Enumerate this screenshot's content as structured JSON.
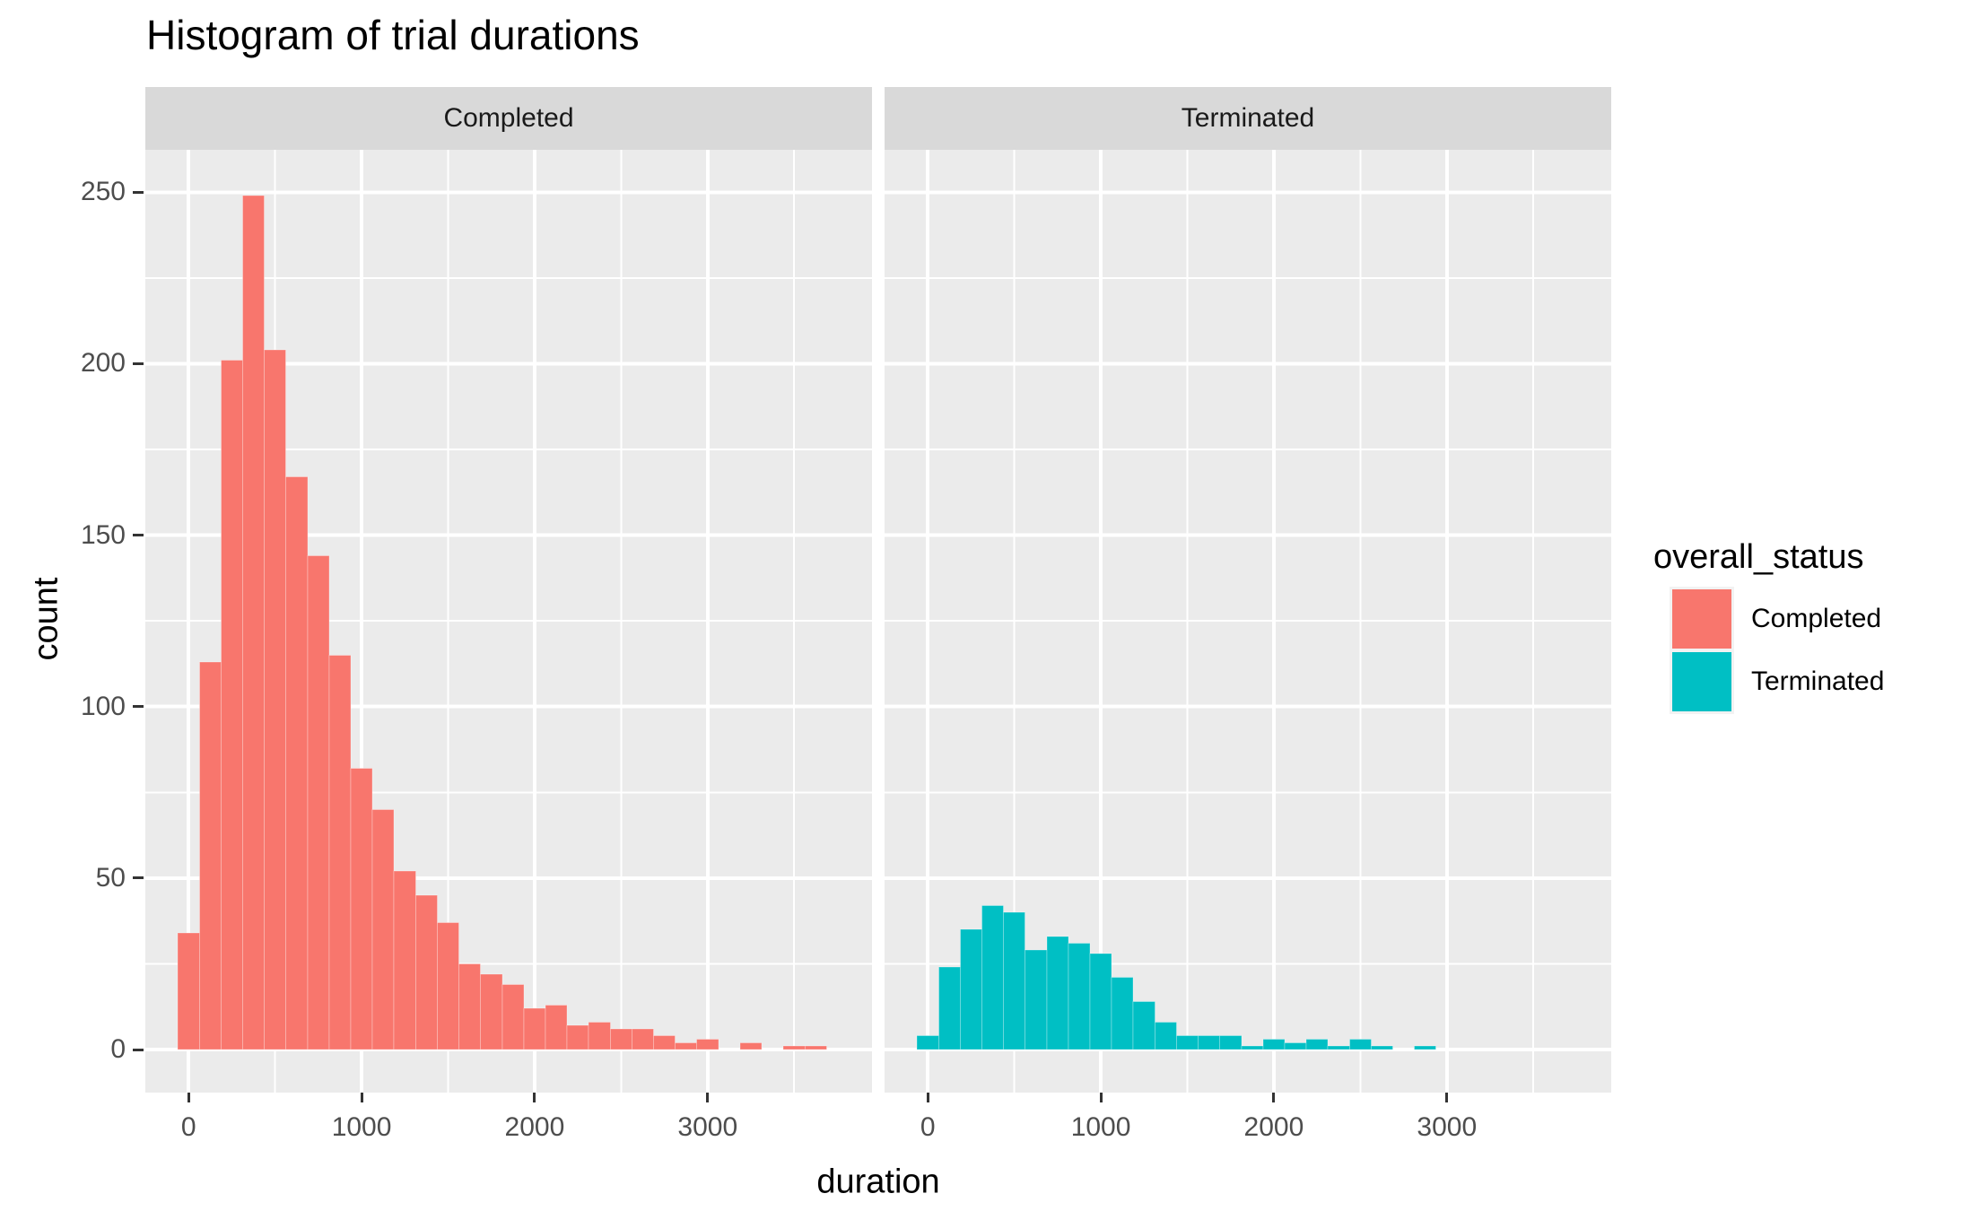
{
  "chart_data": {
    "type": "bar",
    "subtype": "faceted-histogram",
    "title": "Histogram of trial durations",
    "xlabel": "duration",
    "ylabel": "count",
    "grid": true,
    "legend_position": "right",
    "x_tick_values": [
      0,
      1000,
      2000,
      3000
    ],
    "x_tick_labels": [
      "0",
      "1000",
      "2000",
      "3000"
    ],
    "y_tick_values": [
      0,
      50,
      100,
      150,
      200,
      250
    ],
    "y_tick_labels": [
      "0",
      "50",
      "100",
      "150",
      "200",
      "250"
    ],
    "x_minor_values": [
      500,
      1500,
      2500,
      3500
    ],
    "y_minor_values": [
      25,
      75,
      125,
      175,
      225
    ],
    "x_domain": [
      -250,
      3950
    ],
    "y_domain": [
      -12.6,
      262.4
    ],
    "bins": {
      "start": -62.5,
      "width": 125,
      "n": 30
    },
    "facets": [
      {
        "label": "Completed",
        "color": "#F8766D",
        "counts": [
          34,
          113,
          201,
          249,
          204,
          167,
          144,
          115,
          82,
          70,
          52,
          45,
          37,
          25,
          22,
          19,
          12,
          13,
          7,
          8,
          6,
          6,
          4,
          2,
          3,
          0,
          2,
          0,
          1,
          1
        ]
      },
      {
        "label": "Terminated",
        "color": "#00BFC4",
        "counts": [
          4,
          24,
          35,
          42,
          40,
          29,
          33,
          31,
          28,
          21,
          14,
          8,
          4,
          4,
          4,
          1,
          3,
          2,
          3,
          1,
          3,
          1,
          0,
          1,
          0,
          0,
          0,
          0,
          0,
          0
        ]
      }
    ],
    "legend": {
      "title": "overall_status",
      "entries": [
        {
          "label": "Completed",
          "color": "#F8766D"
        },
        {
          "label": "Terminated",
          "color": "#00BFC4"
        }
      ]
    },
    "theme": {
      "background": "#FFFFFF",
      "panel_bg": "#EBEBEB",
      "strip_bg": "#D9D9D9",
      "grid_color": "#FFFFFF",
      "tick_label_color": "#4D4D4D",
      "tick_mark_color": "#333333",
      "strip_text_color": "#1A1A1A",
      "title_color": "#000000"
    }
  }
}
